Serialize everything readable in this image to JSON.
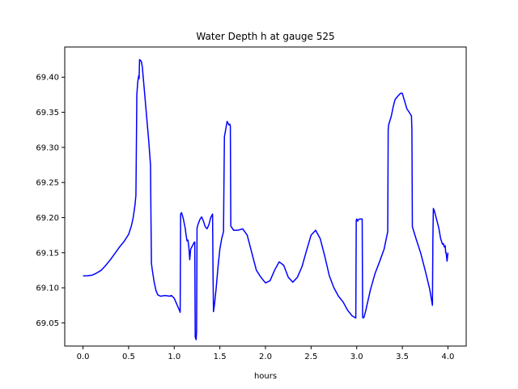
{
  "chart_data": {
    "type": "line",
    "title": "Water Depth h at gauge 525",
    "xlabel": "hours",
    "ylabel": "",
    "xlim": [
      -0.2,
      4.2
    ],
    "ylim": [
      69.017,
      69.443
    ],
    "xticks": [
      0.0,
      0.5,
      1.0,
      1.5,
      2.0,
      2.5,
      3.0,
      3.5,
      4.0
    ],
    "xtick_labels": [
      "0.0",
      "0.5",
      "1.0",
      "1.5",
      "2.0",
      "2.5",
      "3.0",
      "3.5",
      "4.0"
    ],
    "yticks": [
      69.05,
      69.1,
      69.15,
      69.2,
      69.25,
      69.3,
      69.35,
      69.4
    ],
    "ytick_labels": [
      "69.05",
      "69.10",
      "69.15",
      "69.20",
      "69.25",
      "69.30",
      "69.35",
      "69.40"
    ],
    "grid": false,
    "series": [
      {
        "color": "#0000ff",
        "x": [
          0.0,
          0.05,
          0.1,
          0.15,
          0.2,
          0.25,
          0.3,
          0.35,
          0.4,
          0.45,
          0.5,
          0.53,
          0.55,
          0.57,
          0.58,
          0.585,
          0.59,
          0.6,
          0.61,
          0.615,
          0.62,
          0.63,
          0.64,
          0.65,
          0.66,
          0.68,
          0.7,
          0.72,
          0.74,
          0.745,
          0.75,
          0.76,
          0.78,
          0.8,
          0.82,
          0.85,
          0.9,
          0.95,
          0.97,
          1.0,
          1.02,
          1.04,
          1.06,
          1.065,
          1.07,
          1.08,
          1.09,
          1.1,
          1.12,
          1.13,
          1.14,
          1.15,
          1.16,
          1.17,
          1.18,
          1.2,
          1.22,
          1.225,
          1.23,
          1.24,
          1.245,
          1.25,
          1.26,
          1.28,
          1.3,
          1.32,
          1.34,
          1.36,
          1.38,
          1.4,
          1.42,
          1.425,
          1.43,
          1.44,
          1.46,
          1.48,
          1.5,
          1.52,
          1.54,
          1.545,
          1.55,
          1.57,
          1.58,
          1.6,
          1.61,
          1.615,
          1.62,
          1.65,
          1.7,
          1.75,
          1.8,
          1.85,
          1.9,
          1.95,
          2.0,
          2.05,
          2.1,
          2.15,
          2.2,
          2.25,
          2.3,
          2.35,
          2.4,
          2.45,
          2.5,
          2.55,
          2.6,
          2.65,
          2.7,
          2.75,
          2.8,
          2.85,
          2.9,
          2.95,
          2.99,
          2.995,
          3.0,
          3.01,
          3.02,
          3.03,
          3.05,
          3.06,
          3.065,
          3.07,
          3.08,
          3.1,
          3.15,
          3.2,
          3.25,
          3.3,
          3.34,
          3.345,
          3.35,
          3.38,
          3.4,
          3.42,
          3.45,
          3.48,
          3.5,
          3.52,
          3.55,
          3.6,
          3.605,
          3.61,
          3.65,
          3.7,
          3.75,
          3.8,
          3.83,
          3.835,
          3.84,
          3.85,
          3.87,
          3.9,
          3.92,
          3.94,
          3.95,
          3.96,
          3.97,
          3.975,
          3.98,
          3.99,
          4.0
        ],
        "values": [
          69.117,
          69.117,
          69.118,
          69.121,
          69.125,
          69.132,
          69.14,
          69.149,
          69.158,
          69.166,
          69.176,
          69.188,
          69.2,
          69.218,
          69.232,
          69.3,
          69.375,
          69.393,
          69.402,
          69.398,
          69.425,
          69.424,
          69.422,
          69.415,
          69.4,
          69.37,
          69.34,
          69.31,
          69.275,
          69.2,
          69.135,
          69.125,
          69.108,
          69.096,
          69.09,
          69.088,
          69.089,
          69.088,
          69.089,
          69.085,
          69.079,
          69.073,
          69.067,
          69.065,
          69.205,
          69.207,
          69.203,
          69.198,
          69.185,
          69.175,
          69.167,
          69.168,
          69.158,
          69.14,
          69.155,
          69.16,
          69.165,
          69.165,
          69.03,
          69.026,
          69.038,
          69.185,
          69.19,
          69.197,
          69.201,
          69.195,
          69.187,
          69.184,
          69.19,
          69.2,
          69.205,
          69.125,
          69.066,
          69.075,
          69.1,
          69.13,
          69.155,
          69.17,
          69.18,
          69.25,
          69.315,
          69.33,
          69.337,
          69.332,
          69.333,
          69.33,
          69.188,
          69.182,
          69.182,
          69.184,
          69.175,
          69.15,
          69.125,
          69.115,
          69.107,
          69.11,
          69.125,
          69.137,
          69.132,
          69.115,
          69.108,
          69.115,
          69.13,
          69.153,
          69.175,
          69.182,
          69.17,
          69.145,
          69.117,
          69.1,
          69.088,
          69.08,
          69.068,
          69.06,
          69.057,
          69.196,
          69.198,
          69.195,
          69.197,
          69.198,
          69.198,
          69.198,
          69.058,
          69.057,
          69.058,
          69.068,
          69.097,
          69.12,
          69.137,
          69.155,
          69.18,
          69.325,
          69.332,
          69.345,
          69.358,
          69.368,
          69.373,
          69.377,
          69.377,
          69.368,
          69.355,
          69.345,
          69.325,
          69.187,
          69.17,
          69.15,
          69.125,
          69.098,
          69.075,
          69.17,
          69.213,
          69.21,
          69.2,
          69.185,
          69.17,
          69.162,
          69.163,
          69.158,
          69.16,
          69.15,
          69.15,
          69.138,
          69.15
        ]
      }
    ]
  }
}
